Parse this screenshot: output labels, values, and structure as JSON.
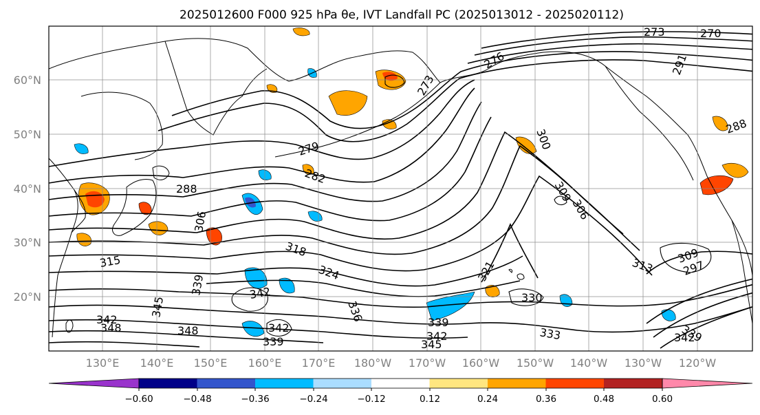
{
  "title": "2025012600 F000 925 hPa θe, IVT Landfall PC (2025013012 - 2025020112)",
  "map": {
    "lat_labels": [
      "60°N",
      "50°N",
      "40°N",
      "30°N",
      "20°N"
    ],
    "lon_labels": [
      "130°E",
      "140°E",
      "150°E",
      "160°E",
      "170°E",
      "180°W",
      "170°W",
      "160°W",
      "150°W",
      "140°W",
      "130°W",
      "120°W"
    ],
    "contour_labels": [
      "279",
      "282",
      "288",
      "306",
      "315",
      "318",
      "324",
      "336",
      "339",
      "342",
      "342",
      "342",
      "345",
      "348",
      "348",
      "339",
      "339",
      "342",
      "345",
      "333",
      "330",
      "321",
      "309",
      "306",
      "300",
      "313",
      "309",
      "297",
      "339",
      "342",
      "270",
      "273",
      "276",
      "273",
      "291",
      "288"
    ]
  },
  "colorbar": {
    "colors": [
      "#9933cc",
      "#000088",
      "#3355cc",
      "#00bbff",
      "#aaddff",
      "#ffffff",
      "#ffe680",
      "#ffa500",
      "#ff4500",
      "#b22222",
      "#ff88aa"
    ],
    "tick_labels": [
      "−0.60",
      "−0.48",
      "−0.36",
      "−0.24",
      "−0.12",
      "0.12",
      "0.24",
      "0.36",
      "0.48",
      "0.60"
    ]
  },
  "chart_data": {
    "type": "heatmap",
    "title": "2025012600 F000 925 hPa θe, IVT Landfall PC (2025013012 - 2025020112)",
    "xlabel": "",
    "ylabel": "",
    "x_ticks": [
      "130°E",
      "140°E",
      "150°E",
      "160°E",
      "170°E",
      "180°W",
      "170°W",
      "160°W",
      "150°W",
      "140°W",
      "130°W",
      "120°W"
    ],
    "y_ticks": [
      "60°N",
      "50°N",
      "40°N",
      "30°N",
      "20°N"
    ],
    "colorbar_levels": [
      -0.6,
      -0.48,
      -0.36,
      -0.24,
      -0.12,
      0.12,
      0.24,
      0.36,
      0.48,
      0.6
    ],
    "contour_values": [
      270,
      273,
      276,
      279,
      282,
      288,
      291,
      297,
      300,
      306,
      309,
      313,
      315,
      318,
      321,
      324,
      330,
      333,
      336,
      339,
      342,
      345,
      348
    ],
    "grid": true
  }
}
